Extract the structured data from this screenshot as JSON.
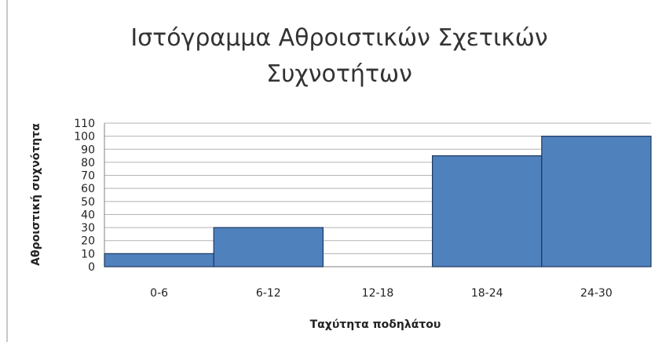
{
  "chart_data": {
    "type": "bar",
    "title_lines": [
      "Ιστόγραμμα Αθροιστικών Σχετικών",
      "Συχνοτήτων"
    ],
    "xlabel": "Ταχύτητα ποδηλάτου",
    "ylabel": "Αθροιστική συχνότητα",
    "categories": [
      "0-6",
      "6-12",
      "12-18",
      "18-24",
      "24-30"
    ],
    "values": [
      10,
      30,
      0,
      85,
      100
    ],
    "ylim": [
      0,
      110
    ],
    "yticks": [
      "0",
      "10",
      "20",
      "30",
      "40",
      "50",
      "60",
      "70",
      "80",
      "90",
      "100",
      "110"
    ],
    "grid": true,
    "legend": "none",
    "colors": {
      "bar_fill": "#4f81bd",
      "bar_stroke": "#1f3a60",
      "grid": "#b3b3b3"
    }
  }
}
